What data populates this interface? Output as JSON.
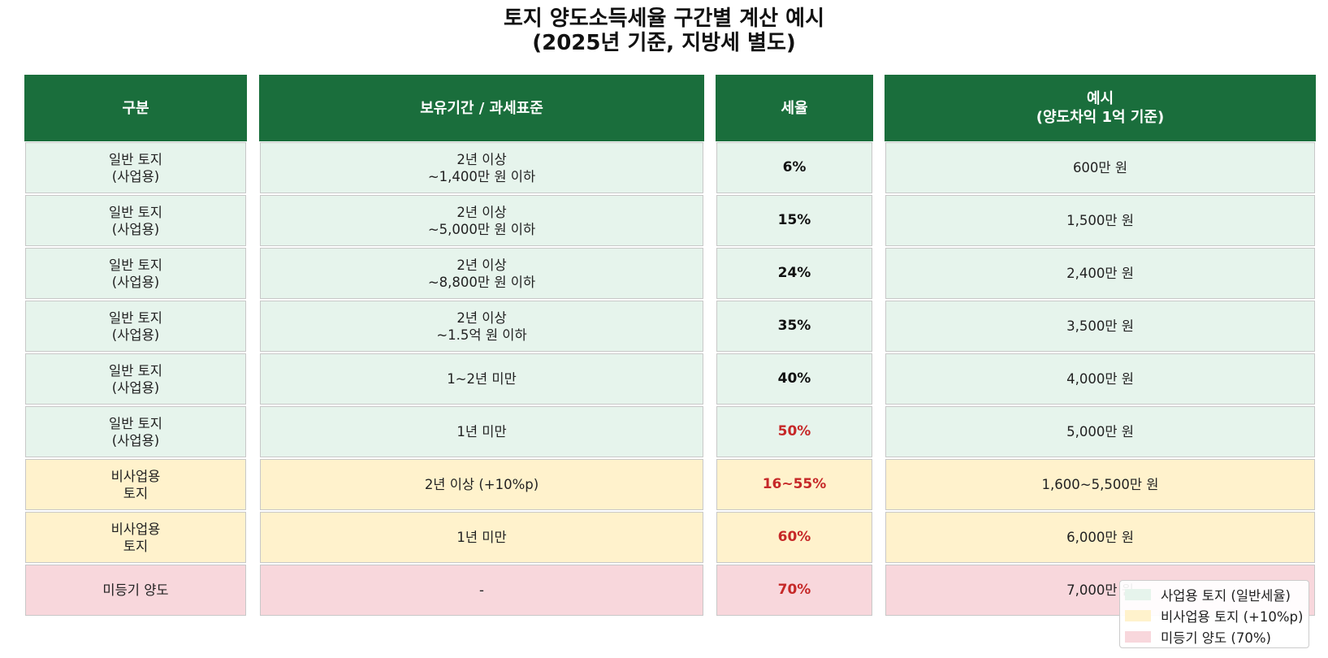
{
  "chart_data": {
    "type": "table",
    "title_lines": [
      "토지 양도소득세율 구간별 계산 예시",
      "(2025년 기준, 지방세 별도)"
    ],
    "header_color": "#1a6e3c",
    "columns": [
      "구분",
      "보유기간 / 과세표준",
      "세율",
      "예시\n(양도차익 1억 기준)"
    ],
    "rows": [
      {
        "category": "일반 토지\n(사업용)",
        "period": "2년 이상\n~1,400만 원 이하",
        "rate": "6%",
        "example": "600만 원",
        "group": "business",
        "highlight": false
      },
      {
        "category": "일반 토지\n(사업용)",
        "period": "2년 이상\n~5,000만 원 이하",
        "rate": "15%",
        "example": "1,500만 원",
        "group": "business",
        "highlight": false
      },
      {
        "category": "일반 토지\n(사업용)",
        "period": "2년 이상\n~8,800만 원 이하",
        "rate": "24%",
        "example": "2,400만 원",
        "group": "business",
        "highlight": false
      },
      {
        "category": "일반 토지\n(사업용)",
        "period": "2년 이상\n~1.5억 원 이하",
        "rate": "35%",
        "example": "3,500만 원",
        "group": "business",
        "highlight": false
      },
      {
        "category": "일반 토지\n(사업용)",
        "period": "1~2년 미만",
        "rate": "40%",
        "example": "4,000만 원",
        "group": "business",
        "highlight": false
      },
      {
        "category": "일반 토지\n(사업용)",
        "period": "1년 미만",
        "rate": "50%",
        "example": "5,000만 원",
        "group": "business",
        "highlight": true
      },
      {
        "category": "비사업용\n토지",
        "period": "2년 이상 (+10%p)",
        "rate": "16~55%",
        "example": "1,600~5,500만 원",
        "group": "nonbusiness",
        "highlight": true
      },
      {
        "category": "비사업용\n토지",
        "period": "1년 미만",
        "rate": "60%",
        "example": "6,000만 원",
        "group": "nonbusiness",
        "highlight": true
      },
      {
        "category": "미등기 양도",
        "period": "-",
        "rate": "70%",
        "example": "7,000만 원",
        "group": "unregistered",
        "highlight": true
      }
    ],
    "group_colors": {
      "business": "#e6f4ec",
      "nonbusiness": "#fff2cc",
      "unregistered": "#f8d7dc"
    },
    "highlight_color": "#c62828",
    "legend": {
      "placement": "lower-right",
      "items": [
        {
          "label": "사업용 토지 (일반세율)",
          "group": "business"
        },
        {
          "label": "비사업용 토지 (+10%p)",
          "group": "nonbusiness"
        },
        {
          "label": "미등기 양도 (70%)",
          "group": "unregistered"
        }
      ]
    }
  }
}
